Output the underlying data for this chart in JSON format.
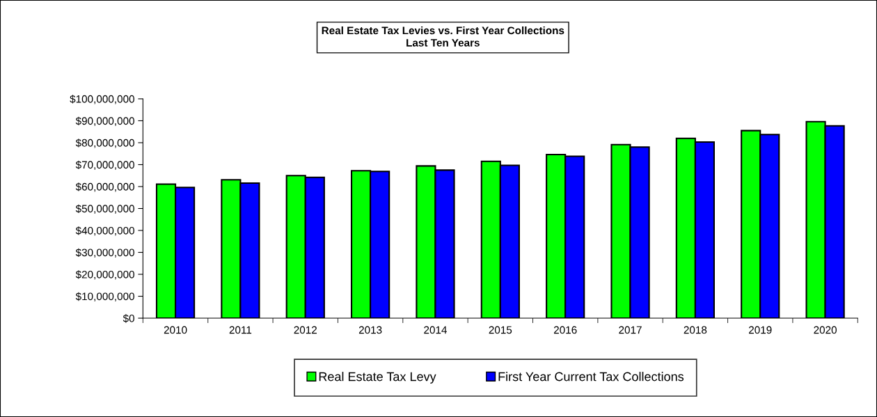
{
  "chart_data": {
    "type": "bar",
    "title": "Real Estate Tax Levies vs. First Year Collections\nLast Ten Years",
    "categories": [
      "2010",
      "2011",
      "2012",
      "2013",
      "2014",
      "2015",
      "2016",
      "2017",
      "2018",
      "2019",
      "2020"
    ],
    "series": [
      {
        "name": "Real Estate Tax Levy",
        "color": "#00ff00",
        "values": [
          61100000,
          63100000,
          65000000,
          67200000,
          69400000,
          71500000,
          74600000,
          79100000,
          82000000,
          85500000,
          89600000
        ]
      },
      {
        "name": "First Year Current Tax Collections",
        "color": "#0000ff",
        "values": [
          59600000,
          61600000,
          64200000,
          66900000,
          67500000,
          69700000,
          73800000,
          78000000,
          80300000,
          83700000,
          87700000
        ]
      }
    ],
    "ylim": [
      0,
      100000000
    ],
    "yticks": [
      {
        "value": 0,
        "label": "$0"
      },
      {
        "value": 10000000,
        "label": "$10,000,000"
      },
      {
        "value": 20000000,
        "label": "$20,000,000"
      },
      {
        "value": 30000000,
        "label": "$30,000,000"
      },
      {
        "value": 40000000,
        "label": "$40,000,000"
      },
      {
        "value": 50000000,
        "label": "$50,000,000"
      },
      {
        "value": 60000000,
        "label": "$60,000,000"
      },
      {
        "value": 70000000,
        "label": "$70,000,000"
      },
      {
        "value": 80000000,
        "label": "$80,000,000"
      },
      {
        "value": 90000000,
        "label": "$90,000,000"
      },
      {
        "value": 100000000,
        "label": "$100,000,000"
      }
    ],
    "grid": false,
    "legend": "bottom"
  }
}
